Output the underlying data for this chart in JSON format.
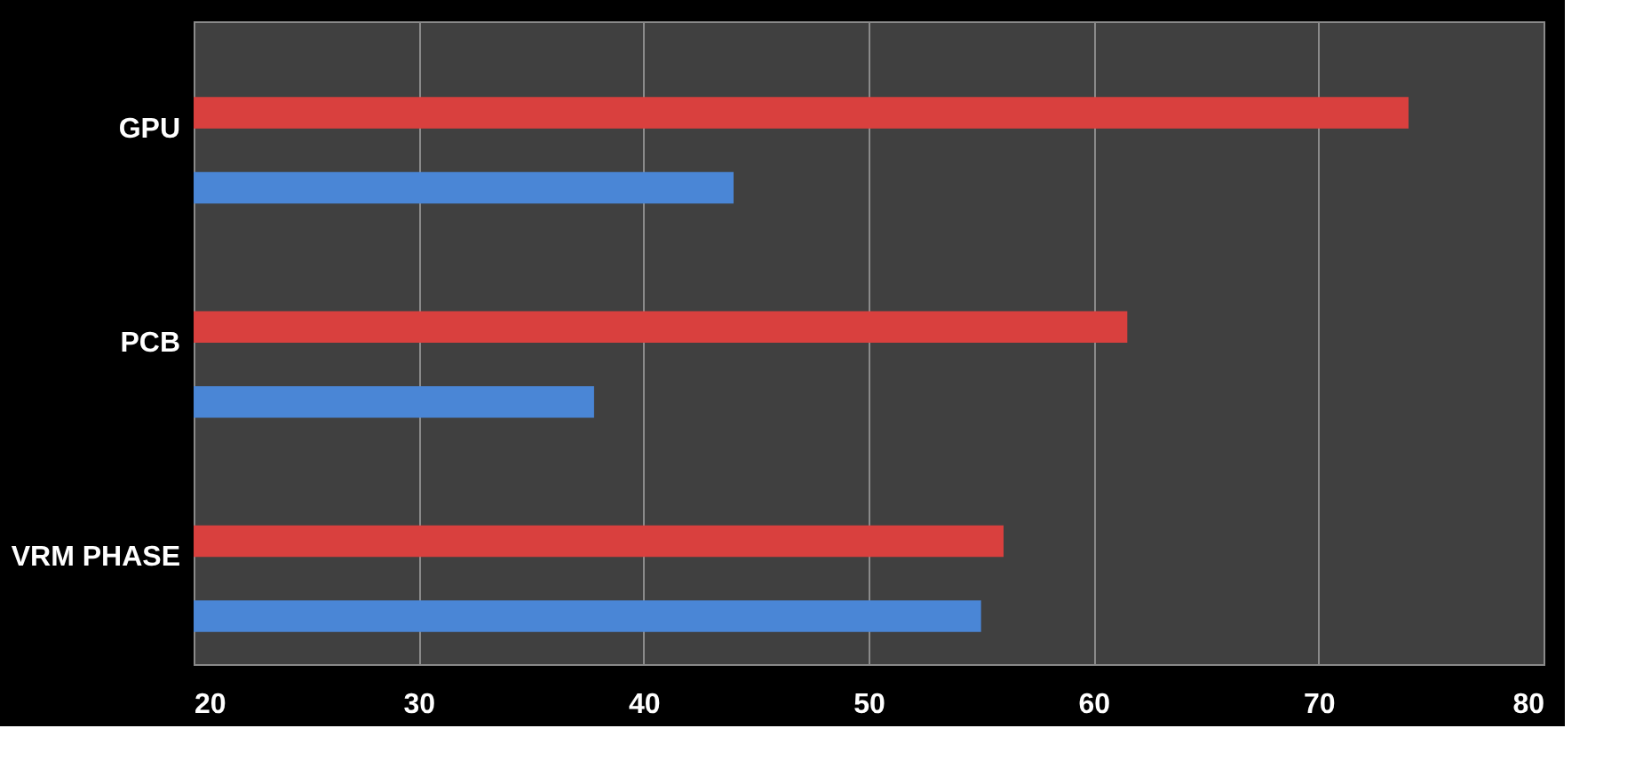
{
  "chart_data": {
    "type": "bar",
    "orientation": "horizontal",
    "categories": [
      "GPU",
      "PCB",
      "VRM PHASE"
    ],
    "series": [
      {
        "color": "#d9403e",
        "values": [
          74,
          61.5,
          56
        ]
      },
      {
        "color": "#4a86d6",
        "values": [
          44,
          37.8,
          55
        ]
      }
    ],
    "xlim": [
      20,
      80
    ],
    "xticks": [
      20,
      30,
      40,
      50,
      60,
      70,
      80
    ],
    "grid": "x",
    "legend": false
  }
}
